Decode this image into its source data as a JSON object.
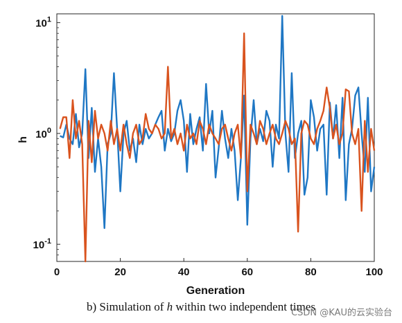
{
  "chart_data": {
    "type": "line",
    "title": "",
    "xlabel": "Generation",
    "ylabel": "h",
    "xlim": [
      0,
      100
    ],
    "ylim": [
      0.07,
      12
    ],
    "yscale": "log",
    "grid": false,
    "x_ticks": [
      "0",
      "20",
      "40",
      "60",
      "80",
      "100"
    ],
    "y_ticks": [
      {
        "base": "10",
        "exp": "-1",
        "value": 0.1
      },
      {
        "base": "10",
        "exp": "0",
        "value": 1
      },
      {
        "base": "10",
        "exp": "1",
        "value": 10
      }
    ],
    "x": [
      1,
      2,
      3,
      4,
      5,
      6,
      7,
      8,
      9,
      10,
      11,
      12,
      13,
      14,
      15,
      16,
      17,
      18,
      19,
      20,
      21,
      22,
      23,
      24,
      25,
      26,
      27,
      28,
      29,
      30,
      31,
      32,
      33,
      34,
      35,
      36,
      37,
      38,
      39,
      40,
      41,
      42,
      43,
      44,
      45,
      46,
      47,
      48,
      49,
      50,
      51,
      52,
      53,
      54,
      55,
      56,
      57,
      58,
      59,
      60,
      61,
      62,
      63,
      64,
      65,
      66,
      67,
      68,
      69,
      70,
      71,
      72,
      73,
      74,
      75,
      76,
      77,
      78,
      79,
      80,
      81,
      82,
      83,
      84,
      85,
      86,
      87,
      88,
      89,
      90,
      91,
      92,
      93,
      94,
      95,
      96,
      97,
      98,
      99,
      100
    ],
    "series": [
      {
        "color": "#1f77c4",
        "values": [
          0.95,
          0.92,
          1.2,
          0.9,
          0.8,
          1.5,
          0.75,
          1.0,
          3.8,
          0.6,
          1.7,
          0.45,
          0.9,
          0.5,
          0.14,
          0.8,
          1.0,
          3.5,
          1.1,
          0.3,
          1.0,
          1.3,
          0.7,
          0.9,
          0.55,
          1.2,
          0.8,
          1.1,
          0.9,
          1.0,
          1.2,
          1.4,
          1.6,
          0.7,
          1.1,
          0.85,
          1.0,
          1.6,
          2.0,
          1.3,
          0.45,
          1.5,
          0.8,
          1.1,
          1.4,
          0.7,
          2.8,
          1.0,
          1.6,
          0.4,
          0.75,
          1.6,
          0.9,
          0.6,
          1.1,
          0.7,
          0.25,
          0.6,
          2.2,
          0.15,
          0.9,
          2.0,
          0.8,
          1.1,
          0.85,
          1.6,
          1.3,
          0.5,
          1.2,
          0.9,
          11.5,
          1.0,
          0.45,
          3.5,
          0.6,
          1.0,
          1.3,
          0.28,
          0.4,
          2.0,
          1.4,
          0.7,
          1.1,
          1.2,
          0.28,
          1.9,
          0.9,
          1.8,
          0.6,
          2.1,
          0.25,
          0.8,
          1.1,
          2.2,
          2.6,
          1.0,
          0.45,
          2.1,
          0.3,
          0.5
        ]
      },
      {
        "color": "#d9531e",
        "values": [
          1.1,
          1.4,
          1.4,
          0.6,
          2.0,
          0.9,
          1.3,
          0.8,
          0.07,
          1.3,
          0.55,
          1.6,
          0.9,
          1.2,
          1.0,
          0.7,
          1.3,
          0.8,
          1.1,
          0.7,
          1.2,
          0.8,
          0.6,
          1.0,
          1.2,
          0.8,
          0.9,
          1.5,
          1.1,
          1.0,
          1.2,
          1.1,
          0.9,
          1.0,
          4.0,
          0.9,
          1.1,
          0.8,
          1.0,
          0.7,
          1.2,
          0.9,
          1.0,
          0.8,
          1.3,
          1.1,
          0.8,
          1.2,
          1.0,
          0.9,
          0.8,
          1.1,
          1.2,
          0.9,
          0.7,
          1.0,
          1.2,
          0.6,
          8.0,
          0.3,
          1.2,
          1.0,
          0.8,
          1.3,
          1.1,
          0.8,
          1.0,
          1.2,
          0.9,
          0.8,
          1.0,
          1.3,
          1.1,
          0.8,
          0.9,
          0.13,
          1.0,
          1.3,
          1.2,
          0.9,
          0.8,
          1.1,
          1.3,
          1.6,
          2.6,
          1.7,
          0.9,
          1.2,
          0.8,
          1.0,
          2.5,
          2.4,
          1.0,
          0.8,
          1.1,
          0.2,
          1.3,
          0.45,
          1.1,
          0.7
        ]
      }
    ]
  },
  "caption": {
    "prefix": "b) Simulation of ",
    "var": "h",
    "suffix": " within two independent times"
  },
  "watermark": "CSDN @KAU的云实验台"
}
